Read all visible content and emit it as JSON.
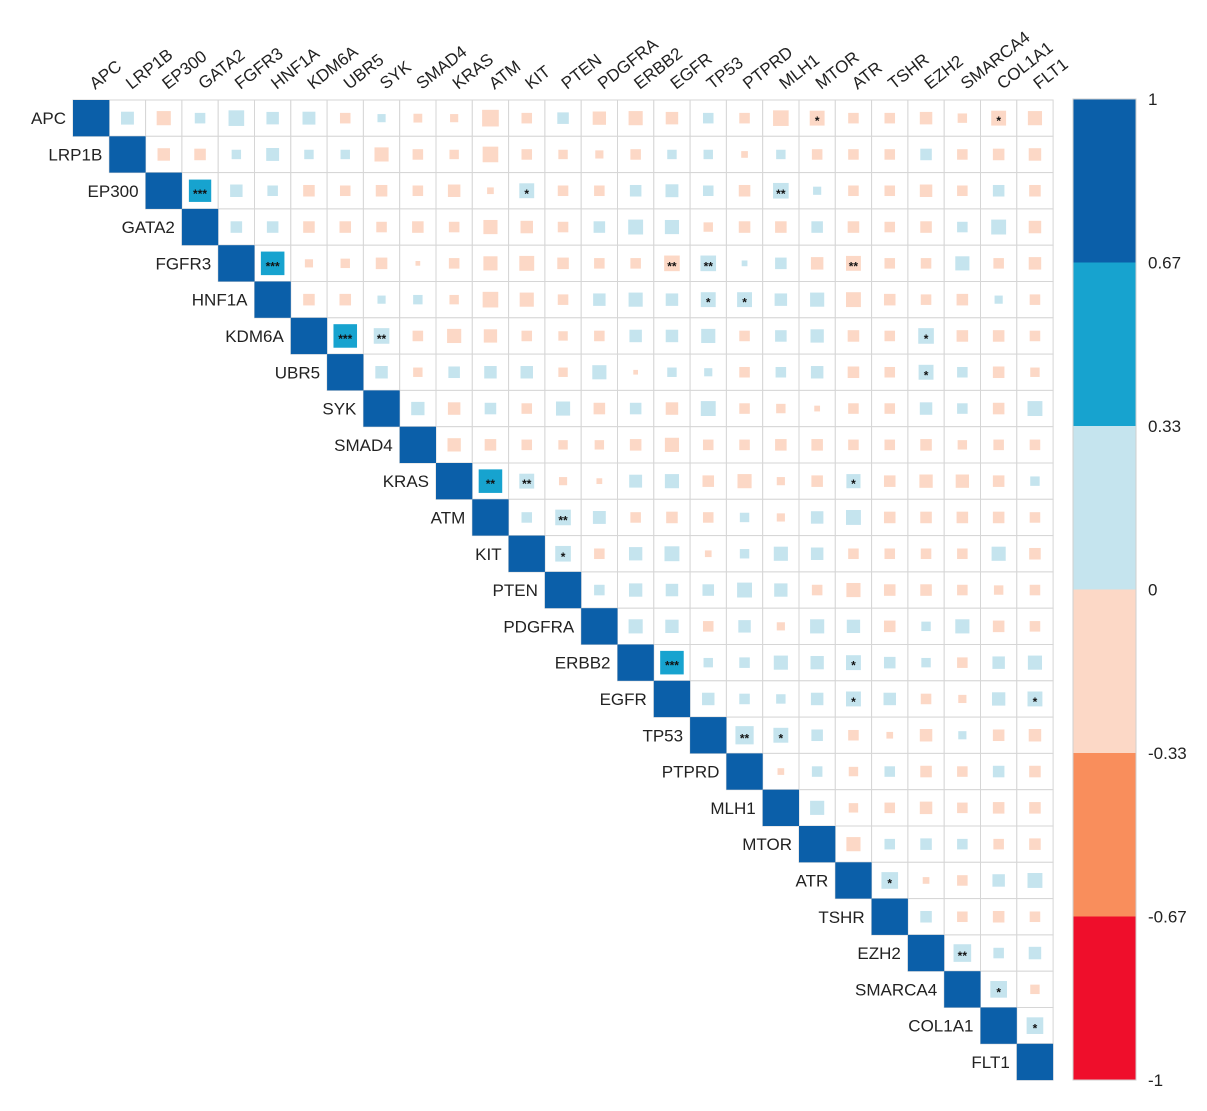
{
  "chart_data": {
    "type": "heatmap",
    "subtype": "upper-triangle correlation matrix (square markers sized by |r|)",
    "variables": [
      "APC",
      "LRP1B",
      "EP300",
      "GATA2",
      "FGFR3",
      "HNF1A",
      "KDM6A",
      "UBR5",
      "SYK",
      "SMAD4",
      "KRAS",
      "ATM",
      "KIT",
      "PTEN",
      "PDGFRA",
      "ERBB2",
      "EGFR",
      "TP53",
      "PTPRD",
      "MLH1",
      "MTOR",
      "ATR",
      "TSHR",
      "EZH2",
      "SMARCA4",
      "COL1A1",
      "FLT1"
    ],
    "correlations": [
      [
        1.0,
        0.15,
        -0.18,
        0.1,
        0.22,
        0.14,
        0.15,
        -0.1,
        0.06,
        -0.07,
        -0.06,
        -0.25,
        -0.1,
        0.12,
        -0.16,
        -0.18,
        -0.14,
        0.1,
        -0.1,
        -0.22,
        -0.2,
        -0.1,
        -0.1,
        -0.14,
        -0.08,
        -0.2,
        -0.18
      ],
      [
        null,
        1.0,
        -0.14,
        -0.12,
        0.08,
        0.15,
        0.08,
        0.08,
        -0.18,
        -0.1,
        -0.08,
        -0.22,
        -0.1,
        -0.08,
        -0.06,
        -0.1,
        0.08,
        0.08,
        -0.04,
        0.08,
        -0.1,
        -0.1,
        -0.1,
        0.12,
        -0.1,
        -0.12,
        -0.14
      ],
      [
        null,
        null,
        1.0,
        0.45,
        0.14,
        0.1,
        -0.12,
        -0.1,
        -0.12,
        -0.1,
        -0.14,
        -0.04,
        0.2,
        -0.1,
        -0.1,
        0.12,
        0.15,
        0.1,
        -0.12,
        0.22,
        0.06,
        -0.1,
        -0.1,
        -0.14,
        -0.1,
        0.12,
        -0.12
      ],
      [
        null,
        null,
        null,
        1.0,
        0.12,
        0.12,
        -0.12,
        -0.12,
        -0.1,
        -0.12,
        -0.1,
        -0.18,
        -0.14,
        -0.1,
        0.12,
        0.2,
        0.18,
        -0.08,
        -0.12,
        -0.12,
        0.12,
        -0.12,
        -0.1,
        -0.12,
        0.1,
        0.2,
        -0.14
      ],
      [
        null,
        null,
        null,
        null,
        1.0,
        0.5,
        -0.06,
        -0.08,
        -0.12,
        -0.02,
        -0.1,
        -0.18,
        -0.2,
        -0.12,
        -0.1,
        -0.1,
        -0.22,
        0.22,
        0.03,
        0.12,
        -0.14,
        -0.2,
        -0.1,
        -0.1,
        0.18,
        -0.1,
        -0.14
      ],
      [
        null,
        null,
        null,
        null,
        null,
        1.0,
        -0.12,
        -0.12,
        0.06,
        0.08,
        -0.08,
        -0.22,
        -0.18,
        -0.1,
        0.14,
        0.18,
        0.14,
        0.2,
        0.2,
        0.14,
        0.18,
        -0.2,
        -0.12,
        -0.1,
        -0.12,
        0.06,
        -0.1
      ],
      [
        null,
        null,
        null,
        null,
        null,
        null,
        1.0,
        0.5,
        0.22,
        -0.1,
        -0.18,
        -0.16,
        -0.1,
        -0.08,
        -0.1,
        0.14,
        0.14,
        0.18,
        -0.1,
        0.12,
        0.16,
        -0.12,
        -0.1,
        0.22,
        -0.12,
        -0.12,
        -0.1
      ],
      [
        null,
        null,
        null,
        null,
        null,
        null,
        null,
        1.0,
        0.14,
        -0.08,
        0.12,
        0.14,
        0.14,
        -0.08,
        0.18,
        -0.02,
        0.08,
        0.06,
        -0.1,
        0.1,
        0.14,
        -0.12,
        -0.1,
        0.2,
        0.1,
        -0.12,
        -0.08
      ],
      [
        null,
        null,
        null,
        null,
        null,
        null,
        null,
        null,
        1.0,
        0.16,
        -0.14,
        0.12,
        -0.1,
        0.18,
        -0.12,
        0.12,
        -0.14,
        0.2,
        -0.1,
        -0.08,
        -0.03,
        -0.1,
        -0.1,
        0.14,
        0.1,
        -0.12,
        0.2
      ],
      [
        null,
        null,
        null,
        null,
        null,
        null,
        null,
        null,
        null,
        1.0,
        -0.16,
        -0.12,
        -0.1,
        -0.08,
        -0.08,
        -0.12,
        -0.18,
        -0.1,
        -0.1,
        -0.12,
        -0.12,
        -0.1,
        -0.1,
        -0.12,
        -0.08,
        -0.1,
        -0.1
      ],
      [
        null,
        null,
        null,
        null,
        null,
        null,
        null,
        null,
        null,
        null,
        1.0,
        0.5,
        0.2,
        -0.06,
        -0.03,
        0.15,
        0.18,
        -0.12,
        -0.18,
        -0.06,
        -0.12,
        0.18,
        -0.12,
        -0.16,
        -0.16,
        -0.12,
        0.08
      ],
      [
        null,
        null,
        null,
        null,
        null,
        null,
        null,
        null,
        null,
        null,
        null,
        1.0,
        0.1,
        0.22,
        0.15,
        -0.1,
        -0.12,
        -0.1,
        0.08,
        -0.06,
        0.14,
        0.2,
        -0.12,
        -0.12,
        -0.12,
        -0.12,
        -0.1
      ],
      [
        null,
        null,
        null,
        null,
        null,
        null,
        null,
        null,
        null,
        null,
        null,
        null,
        1.0,
        0.22,
        -0.1,
        0.16,
        0.2,
        -0.04,
        0.08,
        0.18,
        0.14,
        -0.1,
        -0.1,
        -0.1,
        -0.1,
        0.18,
        -0.12
      ],
      [
        null,
        null,
        null,
        null,
        null,
        null,
        null,
        null,
        null,
        null,
        null,
        null,
        null,
        1.0,
        0.1,
        0.16,
        0.14,
        0.12,
        0.2,
        0.16,
        -0.1,
        -0.18,
        -0.12,
        -0.12,
        -0.1,
        -0.08,
        -0.1
      ],
      [
        null,
        null,
        null,
        null,
        null,
        null,
        null,
        null,
        null,
        null,
        null,
        null,
        null,
        null,
        1.0,
        0.18,
        0.16,
        -0.1,
        0.14,
        -0.06,
        0.18,
        0.16,
        -0.12,
        0.08,
        0.18,
        -0.12,
        -0.1
      ],
      [
        null,
        null,
        null,
        null,
        null,
        null,
        null,
        null,
        null,
        null,
        null,
        null,
        null,
        null,
        null,
        1.0,
        0.5,
        0.08,
        0.1,
        0.18,
        0.16,
        0.2,
        0.12,
        0.08,
        -0.1,
        0.14,
        0.18
      ],
      [
        null,
        null,
        null,
        null,
        null,
        null,
        null,
        null,
        null,
        null,
        null,
        null,
        null,
        null,
        null,
        null,
        1.0,
        0.14,
        0.1,
        0.08,
        0.14,
        0.2,
        0.14,
        -0.1,
        -0.06,
        0.16,
        0.2
      ],
      [
        null,
        null,
        null,
        null,
        null,
        null,
        null,
        null,
        null,
        null,
        null,
        null,
        null,
        null,
        null,
        null,
        null,
        1.0,
        0.3,
        0.2,
        0.12,
        -0.1,
        -0.04,
        -0.14,
        0.06,
        -0.12,
        -0.14
      ],
      [
        null,
        null,
        null,
        null,
        null,
        null,
        null,
        null,
        null,
        null,
        null,
        null,
        null,
        null,
        null,
        null,
        null,
        null,
        1.0,
        -0.04,
        0.1,
        -0.08,
        0.1,
        -0.12,
        -0.1,
        0.12,
        -0.12
      ],
      [
        null,
        null,
        null,
        null,
        null,
        null,
        null,
        null,
        null,
        null,
        null,
        null,
        null,
        null,
        null,
        null,
        null,
        null,
        null,
        1.0,
        0.18,
        -0.08,
        -0.1,
        -0.14,
        -0.1,
        -0.12,
        -0.12
      ],
      [
        null,
        null,
        null,
        null,
        null,
        null,
        null,
        null,
        null,
        null,
        null,
        null,
        null,
        null,
        null,
        null,
        null,
        null,
        null,
        null,
        1.0,
        -0.18,
        0.1,
        0.12,
        0.1,
        -0.1,
        -0.12
      ],
      [
        null,
        null,
        null,
        null,
        null,
        null,
        null,
        null,
        null,
        null,
        null,
        null,
        null,
        null,
        null,
        null,
        null,
        null,
        null,
        null,
        null,
        1.0,
        0.25,
        -0.04,
        -0.1,
        0.14,
        0.2
      ],
      [
        null,
        null,
        null,
        null,
        null,
        null,
        null,
        null,
        null,
        null,
        null,
        null,
        null,
        null,
        null,
        null,
        null,
        null,
        null,
        null,
        null,
        null,
        1.0,
        0.12,
        -0.1,
        -0.12,
        -0.1
      ],
      [
        null,
        null,
        null,
        null,
        null,
        null,
        null,
        null,
        null,
        null,
        null,
        null,
        null,
        null,
        null,
        null,
        null,
        null,
        null,
        null,
        null,
        null,
        null,
        1.0,
        0.28,
        0.1,
        0.14
      ],
      [
        null,
        null,
        null,
        null,
        null,
        null,
        null,
        null,
        null,
        null,
        null,
        null,
        null,
        null,
        null,
        null,
        null,
        null,
        null,
        null,
        null,
        null,
        null,
        null,
        1.0,
        0.25,
        -0.08
      ],
      [
        null,
        null,
        null,
        null,
        null,
        null,
        null,
        null,
        null,
        null,
        null,
        null,
        null,
        null,
        null,
        null,
        null,
        null,
        null,
        null,
        null,
        null,
        null,
        null,
        null,
        1.0,
        0.25
      ],
      [
        null,
        null,
        null,
        null,
        null,
        null,
        null,
        null,
        null,
        null,
        null,
        null,
        null,
        null,
        null,
        null,
        null,
        null,
        null,
        null,
        null,
        null,
        null,
        null,
        null,
        null,
        1.0
      ]
    ],
    "significance": [
      {
        "row": "APC",
        "col": "MTOR",
        "stars": "*"
      },
      {
        "row": "APC",
        "col": "COL1A1",
        "stars": "*"
      },
      {
        "row": "EP300",
        "col": "GATA2",
        "stars": "***"
      },
      {
        "row": "EP300",
        "col": "KIT",
        "stars": "*"
      },
      {
        "row": "EP300",
        "col": "MLH1",
        "stars": "**"
      },
      {
        "row": "FGFR3",
        "col": "HNF1A",
        "stars": "***"
      },
      {
        "row": "FGFR3",
        "col": "EGFR",
        "stars": "**"
      },
      {
        "row": "FGFR3",
        "col": "TP53",
        "stars": "**"
      },
      {
        "row": "FGFR3",
        "col": "ATR",
        "stars": "**"
      },
      {
        "row": "HNF1A",
        "col": "TP53",
        "stars": "*"
      },
      {
        "row": "HNF1A",
        "col": "PTPRD",
        "stars": "*"
      },
      {
        "row": "KDM6A",
        "col": "UBR5",
        "stars": "***"
      },
      {
        "row": "KDM6A",
        "col": "SYK",
        "stars": "**"
      },
      {
        "row": "KDM6A",
        "col": "EZH2",
        "stars": "*"
      },
      {
        "row": "UBR5",
        "col": "EZH2",
        "stars": "*"
      },
      {
        "row": "KRAS",
        "col": "ATM",
        "stars": "**"
      },
      {
        "row": "KRAS",
        "col": "KIT",
        "stars": "**"
      },
      {
        "row": "KRAS",
        "col": "ATR",
        "stars": "*"
      },
      {
        "row": "ATM",
        "col": "PTEN",
        "stars": "**"
      },
      {
        "row": "KIT",
        "col": "PTEN",
        "stars": "*"
      },
      {
        "row": "ERBB2",
        "col": "EGFR",
        "stars": "***"
      },
      {
        "row": "ERBB2",
        "col": "ATR",
        "stars": "*"
      },
      {
        "row": "EGFR",
        "col": "ATR",
        "stars": "*"
      },
      {
        "row": "EGFR",
        "col": "FLT1",
        "stars": "*"
      },
      {
        "row": "TP53",
        "col": "PTPRD",
        "stars": "**"
      },
      {
        "row": "TP53",
        "col": "MLH1",
        "stars": "*"
      },
      {
        "row": "ATR",
        "col": "TSHR",
        "stars": "*"
      },
      {
        "row": "EZH2",
        "col": "SMARCA4",
        "stars": "**"
      },
      {
        "row": "SMARCA4",
        "col": "COL1A1",
        "stars": "*"
      },
      {
        "row": "COL1A1",
        "col": "FLT1",
        "stars": "*"
      }
    ],
    "colorbar": {
      "range": [
        -1,
        1
      ],
      "tick_labels": [
        "1",
        "0.67",
        "0.33",
        "0",
        "-0.33",
        "-0.67",
        "-1"
      ],
      "bins": [
        {
          "from": 0.67,
          "to": 1,
          "color": "#0b5fa9"
        },
        {
          "from": 0.33,
          "to": 0.67,
          "color": "#17a3cf"
        },
        {
          "from": 0,
          "to": 0.33,
          "color": "#c5e4ee"
        },
        {
          "from": -0.33,
          "to": 0,
          "color": "#fcd8c6"
        },
        {
          "from": -0.67,
          "to": -0.33,
          "color": "#f98e5c"
        },
        {
          "from": -1,
          "to": -0.67,
          "color": "#ef0e2b"
        }
      ]
    },
    "title": "",
    "grid": "on",
    "legend": "right"
  }
}
